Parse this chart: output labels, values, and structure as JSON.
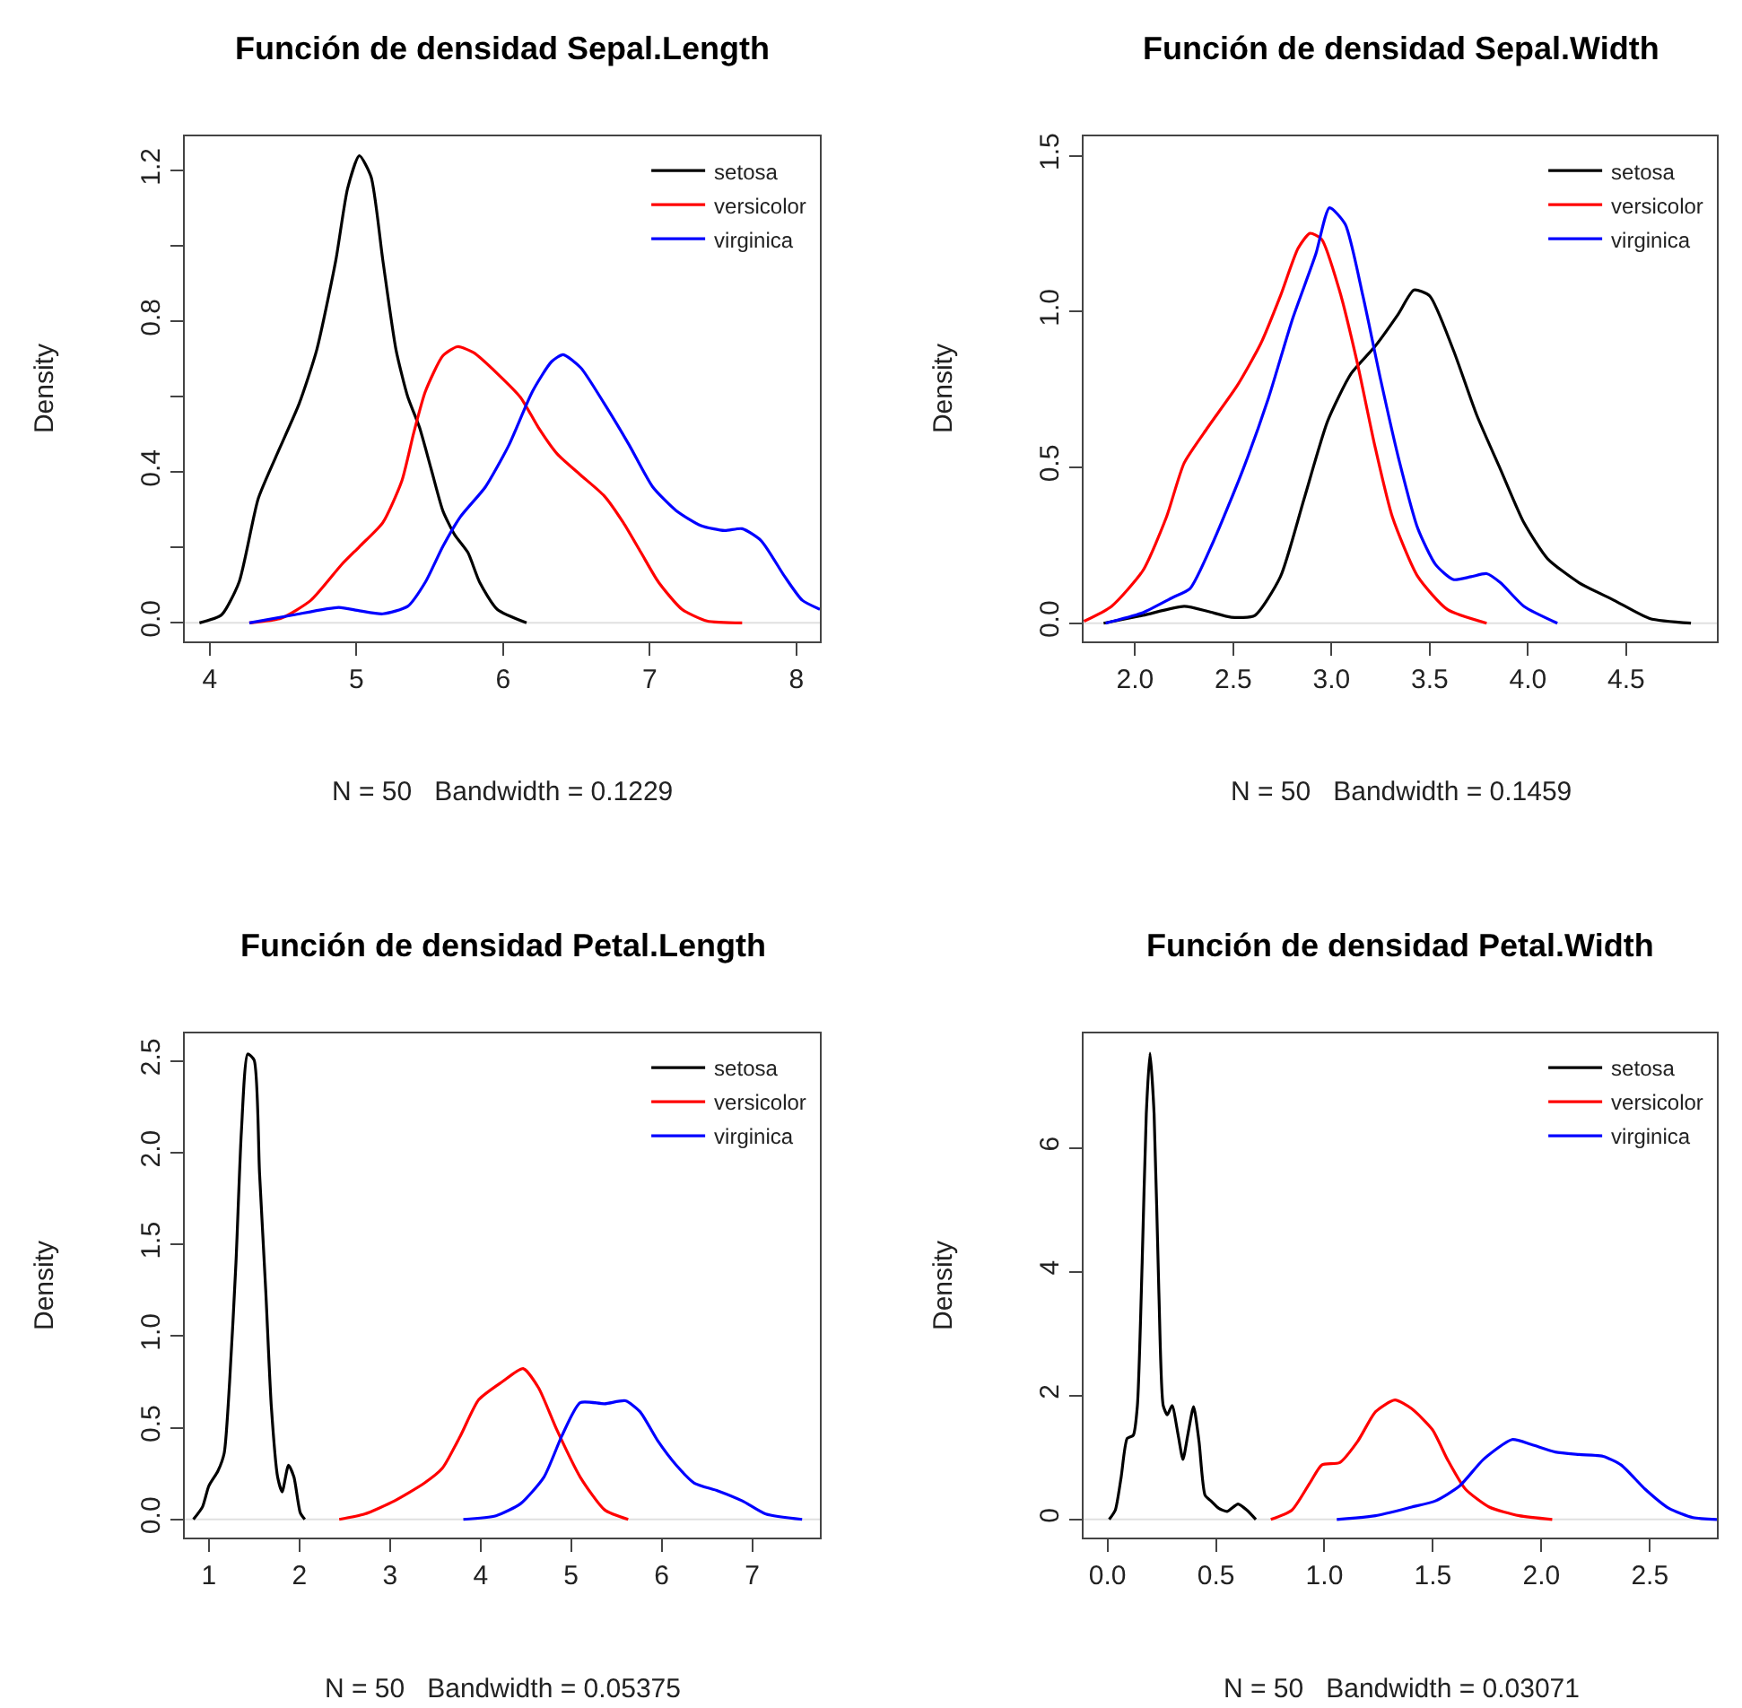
{
  "chart_data": [
    {
      "type": "line",
      "title": "Función de densidad Sepal.Length",
      "xlabel": "N = 50   Bandwidth = 0.1229",
      "ylabel": "Density",
      "xlim": [
        3.83,
        8.16
      ],
      "ylim": [
        -0.048,
        1.292
      ],
      "xticks": [
        4,
        5,
        6,
        7,
        8
      ],
      "yticks": [
        {
          "value": 0,
          "label": "0.0"
        },
        {
          "value": 0.2,
          "label": null
        },
        {
          "value": 0.4,
          "label": "0.4"
        },
        {
          "value": 0.6,
          "label": null
        },
        {
          "value": 0.8,
          "label": "0.8"
        },
        {
          "value": 1.0,
          "label": null
        },
        {
          "value": 1.2,
          "label": "1.2"
        }
      ],
      "legend": "top right",
      "ref_lines": [
        {
          "axis": "y",
          "value": 0,
          "color": "#e0e0e0"
        }
      ],
      "series": [
        {
          "name": "setosa",
          "color": "#000000",
          "x": [
            3.93,
            4.08,
            4.2,
            4.33,
            4.45,
            4.61,
            4.73,
            4.86,
            4.94,
            5.02,
            5.1,
            5.18,
            5.27,
            5.35,
            5.43,
            5.51,
            5.59,
            5.67,
            5.76,
            5.84,
            5.96,
            6.16
          ],
          "values": [
            0,
            0.021,
            0.108,
            0.329,
            0.44,
            0.582,
            0.725,
            0.963,
            1.153,
            1.24,
            1.184,
            0.963,
            0.725,
            0.6,
            0.519,
            0.408,
            0.297,
            0.234,
            0.187,
            0.108,
            0.036,
            0
          ]
        },
        {
          "name": "versicolor",
          "color": "#ff0000",
          "x": [
            4.27,
            4.49,
            4.69,
            4.9,
            5.02,
            5.18,
            5.31,
            5.39,
            5.47,
            5.59,
            5.69,
            5.8,
            5.96,
            6.12,
            6.24,
            6.37,
            6.53,
            6.69,
            6.82,
            6.94,
            7.06,
            7.22,
            7.39,
            7.63
          ],
          "values": [
            0,
            0.013,
            0.06,
            0.155,
            0.202,
            0.266,
            0.377,
            0.503,
            0.614,
            0.709,
            0.733,
            0.717,
            0.662,
            0.598,
            0.519,
            0.448,
            0.392,
            0.337,
            0.266,
            0.187,
            0.108,
            0.036,
            0.005,
            0
          ]
        },
        {
          "name": "virginica",
          "color": "#0000ff",
          "x": [
            4.27,
            4.57,
            4.88,
            5.02,
            5.18,
            5.35,
            5.47,
            5.59,
            5.71,
            5.88,
            6.04,
            6.2,
            6.33,
            6.41,
            6.53,
            6.69,
            6.86,
            7.02,
            7.18,
            7.35,
            7.51,
            7.63,
            7.76,
            7.92,
            8.04,
            8.16
          ],
          "values": [
            0,
            0.021,
            0.041,
            0.032,
            0.024,
            0.044,
            0.108,
            0.203,
            0.282,
            0.361,
            0.472,
            0.614,
            0.693,
            0.712,
            0.677,
            0.582,
            0.472,
            0.361,
            0.298,
            0.258,
            0.245,
            0.25,
            0.218,
            0.123,
            0.06,
            0.036
          ]
        }
      ]
    },
    {
      "type": "line",
      "title": "Función de densidad Sepal.Width",
      "xlabel": "N = 50   Bandwidth = 0.1459",
      "ylabel": "Density",
      "xlim": [
        1.738,
        4.962
      ],
      "ylim": [
        -0.057,
        1.563
      ],
      "xticks": [
        {
          "value": 2,
          "label": "2.0"
        },
        {
          "value": 2.5,
          "label": "2.5"
        },
        {
          "value": 3,
          "label": "3.0"
        },
        {
          "value": 3.5,
          "label": "3.5"
        },
        {
          "value": 4,
          "label": "4.0"
        },
        {
          "value": 4.5,
          "label": "4.5"
        }
      ],
      "yticks": [
        {
          "value": 0,
          "label": "0.0"
        },
        {
          "value": 0.5,
          "label": "0.5"
        },
        {
          "value": 1,
          "label": "1.0"
        },
        {
          "value": 1.5,
          "label": "1.5"
        }
      ],
      "legend": "top right",
      "ref_lines": [
        {
          "axis": "y",
          "value": 0,
          "color": "#e0e0e0"
        }
      ],
      "series": [
        {
          "name": "setosa",
          "color": "#000000",
          "x": [
            1.84,
            2.04,
            2.25,
            2.37,
            2.49,
            2.61,
            2.74,
            2.86,
            2.98,
            3.1,
            3.22,
            3.34,
            3.42,
            3.5,
            3.62,
            3.74,
            3.86,
            3.98,
            4.1,
            4.26,
            4.44,
            4.62,
            4.83
          ],
          "values": [
            0,
            0.025,
            0.054,
            0.038,
            0.019,
            0.025,
            0.149,
            0.398,
            0.648,
            0.801,
            0.887,
            0.992,
            1.069,
            1.05,
            0.877,
            0.667,
            0.494,
            0.322,
            0.207,
            0.13,
            0.073,
            0.015,
            0
          ]
        },
        {
          "name": "versicolor",
          "color": "#ff0000",
          "x": [
            1.74,
            1.88,
            2.04,
            2.16,
            2.25,
            2.37,
            2.52,
            2.64,
            2.74,
            2.83,
            2.89,
            2.95,
            3.04,
            3.13,
            3.22,
            3.31,
            3.44,
            3.59,
            3.79
          ],
          "values": [
            0.006,
            0.054,
            0.169,
            0.341,
            0.514,
            0.628,
            0.762,
            0.897,
            1.05,
            1.203,
            1.251,
            1.232,
            1.069,
            0.839,
            0.571,
            0.341,
            0.149,
            0.044,
            0
          ]
        },
        {
          "name": "virginica",
          "color": "#0000ff",
          "x": [
            1.85,
            2.04,
            2.19,
            2.28,
            2.4,
            2.55,
            2.68,
            2.8,
            2.92,
            2.99,
            3.07,
            3.16,
            3.25,
            3.34,
            3.44,
            3.53,
            3.62,
            3.71,
            3.79,
            3.86,
            3.98,
            4.15
          ],
          "values": [
            0,
            0.034,
            0.082,
            0.111,
            0.264,
            0.494,
            0.724,
            0.973,
            1.184,
            1.333,
            1.28,
            1.05,
            0.782,
            0.533,
            0.303,
            0.188,
            0.14,
            0.149,
            0.159,
            0.13,
            0.054,
            0
          ]
        }
      ]
    },
    {
      "type": "line",
      "title": "Función de densidad Petal.Length",
      "xlabel": "N = 50   Bandwidth = 0.05375",
      "ylabel": "Density",
      "xlim": [
        0.735,
        7.746
      ],
      "ylim": [
        -0.101,
        2.653
      ],
      "xticks": [
        1,
        2,
        3,
        4,
        5,
        6,
        7
      ],
      "yticks": [
        {
          "value": 0,
          "label": "0.0"
        },
        {
          "value": 0.5,
          "label": "0.5"
        },
        {
          "value": 1,
          "label": "1.0"
        },
        {
          "value": 1.5,
          "label": "1.5"
        },
        {
          "value": 2,
          "label": "2.0"
        },
        {
          "value": 2.5,
          "label": "2.5"
        }
      ],
      "legend": "top right",
      "ref_lines": [
        {
          "axis": "y",
          "value": 0,
          "color": "#e0e0e0"
        }
      ],
      "series": [
        {
          "name": "setosa",
          "color": "#000000",
          "x": [
            0.83,
            0.93,
            1.0,
            1.1,
            1.17,
            1.23,
            1.3,
            1.36,
            1.43,
            1.5,
            1.56,
            1.63,
            1.69,
            1.76,
            1.81,
            1.88,
            1.94,
            2.01,
            2.06
          ],
          "values": [
            0,
            0.068,
            0.182,
            0.263,
            0.361,
            0.751,
            1.401,
            2.117,
            2.539,
            2.506,
            1.89,
            1.235,
            0.618,
            0.231,
            0.15,
            0.296,
            0.231,
            0.036,
            0
          ]
        },
        {
          "name": "versicolor",
          "color": "#ff0000",
          "x": [
            2.44,
            2.72,
            3.05,
            3.38,
            3.58,
            3.78,
            3.98,
            4.24,
            4.47,
            4.64,
            4.84,
            5.1,
            5.37,
            5.63
          ],
          "values": [
            0,
            0.029,
            0.101,
            0.198,
            0.28,
            0.458,
            0.653,
            0.751,
            0.823,
            0.718,
            0.491,
            0.231,
            0.052,
            0
          ]
        },
        {
          "name": "virginica",
          "color": "#0000ff",
          "x": [
            3.81,
            4.17,
            4.44,
            4.7,
            4.9,
            5.1,
            5.37,
            5.6,
            5.76,
            5.96,
            6.16,
            6.36,
            6.62,
            6.89,
            7.15,
            7.55
          ],
          "values": [
            0,
            0.02,
            0.085,
            0.231,
            0.458,
            0.637,
            0.631,
            0.647,
            0.588,
            0.426,
            0.296,
            0.198,
            0.156,
            0.101,
            0.029,
            0
          ]
        }
      ]
    },
    {
      "type": "line",
      "title": "Función de densidad Petal.Width",
      "xlabel": "N = 50   Bandwidth = 0.03071",
      "ylabel": "Density",
      "xlim": [
        -0.11,
        2.809
      ],
      "ylim": [
        -0.298,
        7.856
      ],
      "xticks": [
        {
          "value": 0,
          "label": "0.0"
        },
        {
          "value": 0.5,
          "label": "0.5"
        },
        {
          "value": 1,
          "label": "1.0"
        },
        {
          "value": 1.5,
          "label": "1.5"
        },
        {
          "value": 2,
          "label": "2.0"
        },
        {
          "value": 2.5,
          "label": "2.5"
        }
      ],
      "yticks": [
        0,
        2,
        4,
        6
      ],
      "legend": "top right",
      "ref_lines": [
        {
          "axis": "y",
          "value": 0,
          "color": "#e0e0e0"
        }
      ],
      "series": [
        {
          "name": "setosa",
          "color": "#000000",
          "x": [
            0.008,
            0.036,
            0.063,
            0.091,
            0.119,
            0.138,
            0.16,
            0.179,
            0.196,
            0.215,
            0.237,
            0.257,
            0.276,
            0.298,
            0.326,
            0.348,
            0.37,
            0.397,
            0.422,
            0.45,
            0.477,
            0.513,
            0.552,
            0.602,
            0.643,
            0.684
          ],
          "values": [
            0,
            0.15,
            0.68,
            1.31,
            1.36,
            1.84,
            4.15,
            6.55,
            7.53,
            6.55,
            3.67,
            1.84,
            1.69,
            1.84,
            1.36,
            0.97,
            1.36,
            1.82,
            1.26,
            0.39,
            0.3,
            0.18,
            0.13,
            0.25,
            0.15,
            0
          ]
        },
        {
          "name": "versicolor",
          "color": "#ff0000",
          "x": [
            0.753,
            0.85,
            0.933,
            0.988,
            1.071,
            1.153,
            1.236,
            1.325,
            1.402,
            1.498,
            1.567,
            1.65,
            1.76,
            1.898,
            2.05
          ],
          "values": [
            0,
            0.15,
            0.59,
            0.88,
            0.92,
            1.26,
            1.74,
            1.93,
            1.79,
            1.45,
            0.97,
            0.49,
            0.2,
            0.06,
            0
          ]
        },
        {
          "name": "virginica",
          "color": "#0000ff",
          "x": [
            1.057,
            1.236,
            1.402,
            1.512,
            1.623,
            1.733,
            1.865,
            1.954,
            2.064,
            2.174,
            2.285,
            2.368,
            2.478,
            2.588,
            2.699,
            2.809
          ],
          "values": [
            0,
            0.06,
            0.2,
            0.3,
            0.54,
            0.97,
            1.29,
            1.21,
            1.09,
            1.05,
            1.02,
            0.88,
            0.49,
            0.18,
            0.03,
            0
          ]
        }
      ]
    }
  ]
}
